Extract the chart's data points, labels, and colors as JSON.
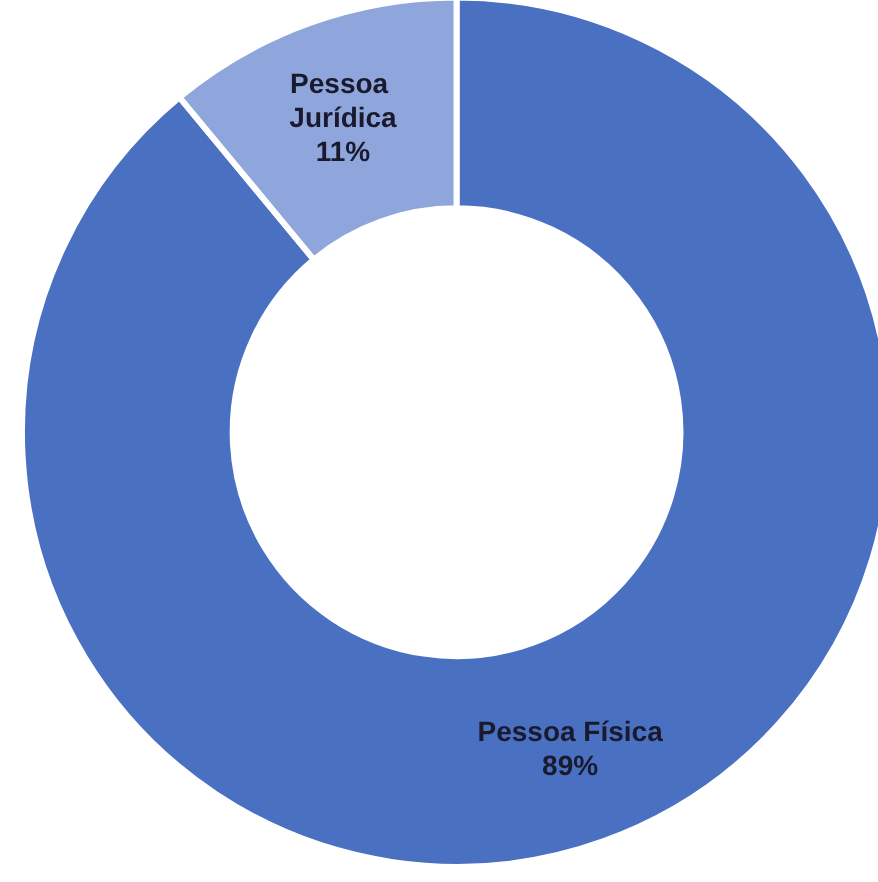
{
  "chart_data": {
    "type": "donut",
    "categories": [
      "Pessoa Física",
      "Pessoa Jurídica"
    ],
    "values": [
      89,
      11
    ],
    "colors": [
      "#4a70c2",
      "#8fa6dc"
    ],
    "value_labels": [
      "89%",
      "11%"
    ]
  }
}
